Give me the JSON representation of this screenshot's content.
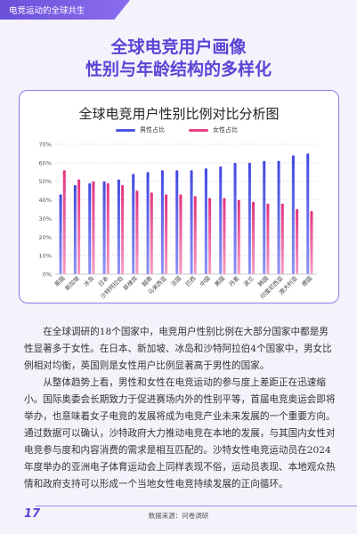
{
  "header": {
    "tab_label": "电竞运动的全球共生"
  },
  "heading": {
    "line1": "全球电竞用户画像",
    "line2": "性别与年龄结构的多样化"
  },
  "colors": {
    "accent": "#5b44d6",
    "male": "#4f55e3",
    "female": "#e83f88"
  },
  "chart_data": {
    "type": "bar",
    "title": "全球电竞用户性别比例对比分析图",
    "categories": [
      "英国",
      "新加坡",
      "冰岛",
      "日本",
      "沙特阿拉伯",
      "菲律宾",
      "越南",
      "马来西亚",
      "法国",
      "巴西",
      "中国",
      "美国",
      "丹麦",
      "波兰",
      "韩国",
      "印度尼西亚",
      "澳大利亚",
      "德国"
    ],
    "series": [
      {
        "name": "男性占比",
        "values": [
          43,
          48,
          49,
          50,
          51,
          54,
          55,
          56,
          56,
          56,
          57,
          58,
          60,
          60,
          61,
          61,
          64,
          65
        ]
      },
      {
        "name": "女性占比",
        "values": [
          56,
          51,
          50,
          49,
          48,
          45,
          44,
          43,
          43,
          42,
          41,
          41,
          40,
          39,
          38,
          38,
          35,
          34
        ]
      }
    ],
    "y_ticks": [
      "0%",
      "10%",
      "20%",
      "30%",
      "40%",
      "50%",
      "60%",
      "70%"
    ],
    "ylim": [
      0,
      70
    ],
    "xlabel": "",
    "ylabel": "",
    "grid": true,
    "legend": "top-center"
  },
  "body": {
    "p1": "在全球调研的18个国家中，电竞用户性别比例在大部分国家中都是男性显著多于女性。在日本、新加坡、冰岛和沙特阿拉伯4个国家中，男女比例相对均衡，英国则是女性用户比例显著高于男性的国家。",
    "p2": "从整体趋势上看，男性和女性在电竞运动的参与度上差距正在迅速缩小。国际奥委会长期致力于促进赛场内外的性别平等，首届电竞奥运会即将举办，也意味着女子电竞的发展将成为电竞产业未来发展的一个重要方向。通过数据可以确认，沙特政府大力推动电竞在本地的发展，与其国内女性对电竞参与度和内容消费的需求是相互匹配的。沙特女性电竞运动员在2024年度举办的亚洲电子体育运动会上同样表现不俗，运动员表现、本地观众热情和政府支持可以形成一个当地女性电竞持续发展的正向循环。"
  },
  "footer": {
    "page_number": "17",
    "source": "数据来源：问卷调研"
  }
}
